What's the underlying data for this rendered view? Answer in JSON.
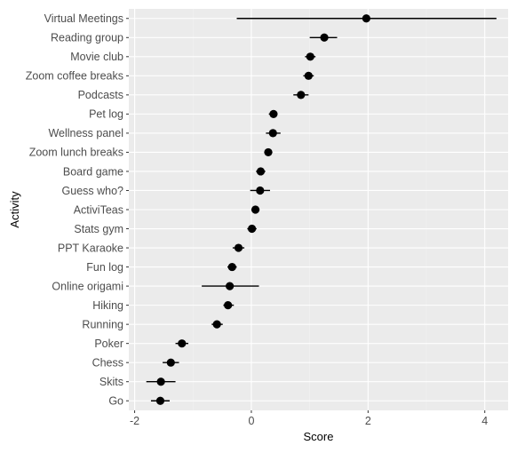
{
  "chart_data": {
    "type": "scatter",
    "subtype": "dot-and-whisker",
    "xlabel": "Score",
    "ylabel": "Activity",
    "xlim": [
      -2.1,
      4.4
    ],
    "x_ticks": [
      -2,
      0,
      2,
      4
    ],
    "x_tick_labels": [
      "-2",
      "0",
      "2",
      "4"
    ],
    "grid": true,
    "legend": "none",
    "colors": {
      "panel": "#ebebeb",
      "grid_major": "#ffffff",
      "grid_minor": "#f2f2f2",
      "point": "#000000",
      "text": "#4d4d4d",
      "title": "#000000"
    },
    "categories": [
      "Virtual Meetings",
      "Reading group",
      "Movie club",
      "Zoom coffee breaks",
      "Podcasts",
      "Pet log",
      "Wellness panel",
      "Zoom lunch breaks",
      "Board game",
      "Guess who?",
      "ActiviTeas",
      "Stats gym",
      "PPT Karaoke",
      "Fun log",
      "Online origami",
      "Hiking",
      "Running",
      "Poker",
      "Chess",
      "Skits",
      "Go"
    ],
    "values": [
      1.97,
      1.25,
      1.01,
      0.98,
      0.85,
      0.38,
      0.37,
      0.29,
      0.16,
      0.15,
      0.07,
      0.01,
      -0.22,
      -0.33,
      -0.37,
      -0.4,
      -0.59,
      -1.19,
      -1.38,
      -1.55,
      -1.56
    ],
    "lower": [
      -0.25,
      1.0,
      0.92,
      0.89,
      0.72,
      0.3,
      0.25,
      0.22,
      0.08,
      -0.02,
      0.0,
      -0.07,
      -0.32,
      -0.41,
      -0.85,
      -0.48,
      -0.68,
      -1.3,
      -1.52,
      -1.8,
      -1.72
    ],
    "upper": [
      4.2,
      1.47,
      1.1,
      1.07,
      0.98,
      0.45,
      0.5,
      0.36,
      0.24,
      0.32,
      0.14,
      0.09,
      -0.12,
      -0.25,
      0.13,
      -0.3,
      -0.49,
      -1.08,
      -1.24,
      -1.3,
      -1.4
    ]
  }
}
